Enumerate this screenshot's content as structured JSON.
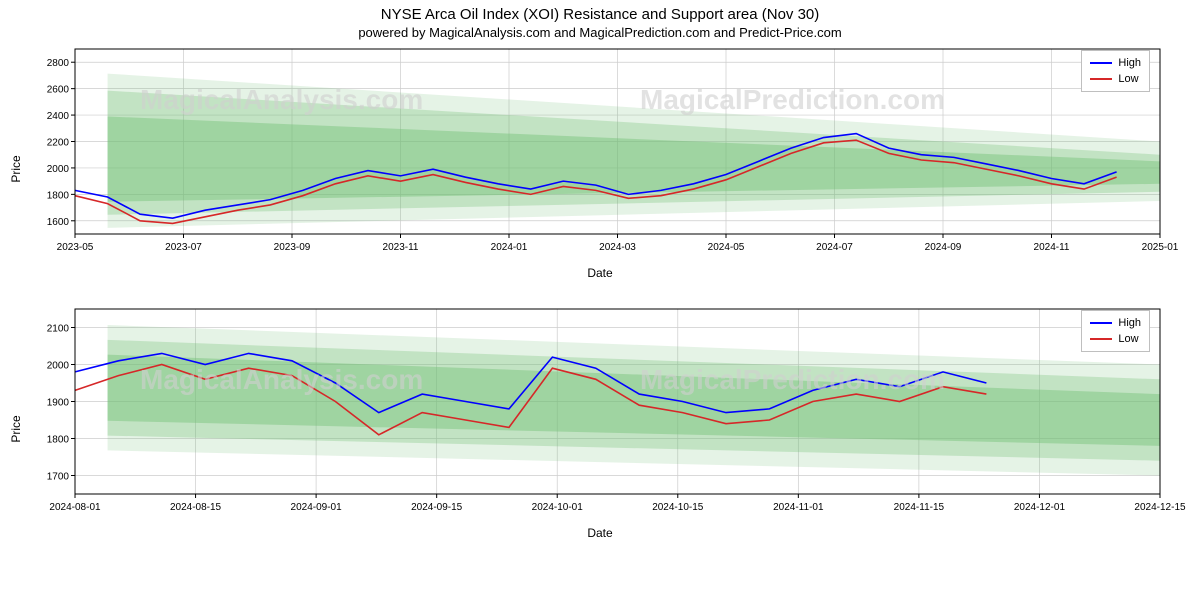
{
  "title": "NYSE Arca Oil Index (XOI) Resistance and Support area (Nov 30)",
  "subtitle": "powered by MagicalAnalysis.com and MagicalPrediction.com and Predict-Price.com",
  "watermarks": [
    "MagicalAnalysis.com",
    "MagicalPrediction.com"
  ],
  "legend": {
    "high": "High",
    "low": "Low"
  },
  "colors": {
    "high_line": "#0000ff",
    "low_line": "#d62728",
    "band_fill": "#6fbf73",
    "band_opacity_outer": 0.18,
    "band_opacity_mid": 0.3,
    "band_opacity_inner": 0.42,
    "grid": "#cccccc",
    "axis": "#000000",
    "bg": "#ffffff",
    "text": "#000000",
    "watermark": "#d0d0d0"
  },
  "chart1": {
    "ylabel": "Price",
    "xlabel": "Date",
    "ylim": [
      1500,
      2900
    ],
    "yticks": [
      1600,
      1800,
      2000,
      2200,
      2400,
      2600,
      2800
    ],
    "xticks": [
      "2023-05",
      "2023-07",
      "2023-09",
      "2023-11",
      "2024-01",
      "2024-03",
      "2024-05",
      "2024-07",
      "2024-09",
      "2024-11",
      "2025-01"
    ],
    "bands": {
      "x": [
        0,
        1
      ],
      "outer_top": [
        2730,
        2200
      ],
      "outer_bot": [
        1540,
        1750
      ],
      "mid_top": [
        2600,
        2100
      ],
      "mid_bot": [
        1640,
        1820
      ],
      "inner_top": [
        2400,
        2050
      ],
      "inner_bot": [
        1740,
        1880
      ]
    },
    "high": {
      "x": [
        0.0,
        0.03,
        0.06,
        0.09,
        0.12,
        0.15,
        0.18,
        0.21,
        0.24,
        0.27,
        0.3,
        0.33,
        0.36,
        0.39,
        0.42,
        0.45,
        0.48,
        0.51,
        0.54,
        0.57,
        0.6,
        0.63,
        0.66,
        0.69,
        0.72,
        0.75,
        0.78,
        0.81,
        0.84,
        0.87,
        0.9,
        0.93,
        0.96
      ],
      "y": [
        1830,
        1780,
        1650,
        1620,
        1680,
        1720,
        1760,
        1830,
        1920,
        1980,
        1940,
        1990,
        1930,
        1880,
        1840,
        1900,
        1870,
        1800,
        1830,
        1880,
        1950,
        2050,
        2150,
        2230,
        2260,
        2150,
        2100,
        2080,
        2030,
        1980,
        1920,
        1880,
        1970
      ]
    },
    "low": {
      "x": [
        0.0,
        0.03,
        0.06,
        0.09,
        0.12,
        0.15,
        0.18,
        0.21,
        0.24,
        0.27,
        0.3,
        0.33,
        0.36,
        0.39,
        0.42,
        0.45,
        0.48,
        0.51,
        0.54,
        0.57,
        0.6,
        0.63,
        0.66,
        0.69,
        0.72,
        0.75,
        0.78,
        0.81,
        0.84,
        0.87,
        0.9,
        0.93,
        0.96
      ],
      "y": [
        1790,
        1730,
        1600,
        1580,
        1630,
        1680,
        1720,
        1790,
        1880,
        1940,
        1900,
        1950,
        1890,
        1840,
        1800,
        1860,
        1830,
        1770,
        1790,
        1840,
        1910,
        2010,
        2110,
        2190,
        2210,
        2110,
        2060,
        2040,
        1990,
        1940,
        1880,
        1840,
        1930
      ]
    }
  },
  "chart2": {
    "ylabel": "Price",
    "xlabel": "Date",
    "ylim": [
      1650,
      2150
    ],
    "yticks": [
      1700,
      1800,
      1900,
      2000,
      2100
    ],
    "xticks": [
      "2024-08-01",
      "2024-08-15",
      "2024-09-01",
      "2024-09-15",
      "2024-10-01",
      "2024-10-15",
      "2024-11-01",
      "2024-11-15",
      "2024-12-01",
      "2024-12-15"
    ],
    "bands": {
      "x": [
        0,
        1
      ],
      "outer_top": [
        2110,
        2000
      ],
      "outer_bot": [
        1770,
        1700
      ],
      "mid_top": [
        2070,
        1960
      ],
      "mid_bot": [
        1810,
        1740
      ],
      "inner_top": [
        2030,
        1920
      ],
      "inner_bot": [
        1850,
        1780
      ]
    },
    "high": {
      "x": [
        0.0,
        0.04,
        0.08,
        0.12,
        0.16,
        0.2,
        0.24,
        0.28,
        0.32,
        0.36,
        0.4,
        0.44,
        0.48,
        0.52,
        0.56,
        0.6,
        0.64,
        0.68,
        0.72,
        0.76,
        0.8,
        0.84
      ],
      "y": [
        1980,
        2010,
        2030,
        2000,
        2030,
        2010,
        1950,
        1870,
        1920,
        1900,
        1880,
        2020,
        1990,
        1920,
        1900,
        1870,
        1880,
        1930,
        1960,
        1940,
        1980,
        1950
      ]
    },
    "low": {
      "x": [
        0.0,
        0.04,
        0.08,
        0.12,
        0.16,
        0.2,
        0.24,
        0.28,
        0.32,
        0.36,
        0.4,
        0.44,
        0.48,
        0.52,
        0.56,
        0.6,
        0.64,
        0.68,
        0.72,
        0.76,
        0.8,
        0.84
      ],
      "y": [
        1930,
        1970,
        2000,
        1960,
        1990,
        1970,
        1900,
        1810,
        1870,
        1850,
        1830,
        1990,
        1960,
        1890,
        1870,
        1840,
        1850,
        1900,
        1920,
        1900,
        1940,
        1920
      ]
    }
  }
}
